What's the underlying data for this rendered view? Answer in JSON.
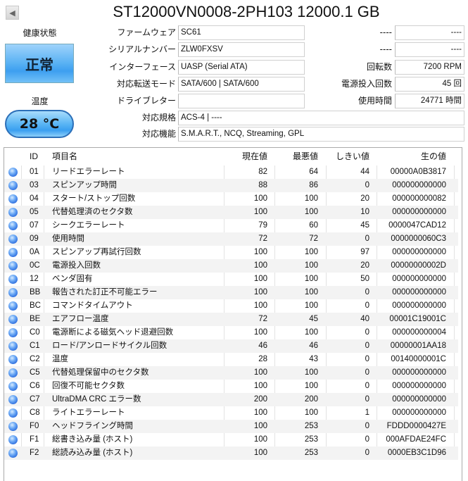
{
  "header": {
    "title": "ST12000VN0008-2PH103 12000.1 GB",
    "back_icon": "triangle-left-icon"
  },
  "health": {
    "label": "健康状態",
    "status": "正常",
    "color": "#4aa8f2"
  },
  "temperature": {
    "label": "温度",
    "value": "28 °C"
  },
  "info_left": [
    {
      "label": "ファームウェア",
      "value": "SC61"
    },
    {
      "label": "シリアルナンバー",
      "value": "ZLW0FXSV"
    },
    {
      "label": "インターフェース",
      "value": "UASP (Serial ATA)"
    },
    {
      "label": "対応転送モード",
      "value": "SATA/600 | SATA/600"
    },
    {
      "label": "ドライブレター",
      "value": ""
    }
  ],
  "info_right": [
    {
      "label": "----",
      "value": "----"
    },
    {
      "label": "----",
      "value": "----"
    },
    {
      "label": "回転数",
      "value": "7200 RPM"
    },
    {
      "label": "電源投入回数",
      "value": "45 回"
    },
    {
      "label": "使用時間",
      "value": "24771 時間"
    }
  ],
  "info_wide": [
    {
      "label": "対応規格",
      "value": "ACS-4 | ----"
    },
    {
      "label": "対応機能",
      "value": "S.M.A.R.T., NCQ, Streaming, GPL"
    }
  ],
  "smart": {
    "columns": [
      "ID",
      "項目名",
      "現在値",
      "最悪値",
      "しきい値",
      "生の値"
    ],
    "rows": [
      [
        "01",
        "リードエラーレート",
        "82",
        "64",
        "44",
        "00000A0B3817"
      ],
      [
        "03",
        "スピンアップ時間",
        "88",
        "86",
        "0",
        "000000000000"
      ],
      [
        "04",
        "スタート/ストップ回数",
        "100",
        "100",
        "20",
        "000000000082"
      ],
      [
        "05",
        "代替処理済のセクタ数",
        "100",
        "100",
        "10",
        "000000000000"
      ],
      [
        "07",
        "シークエラーレート",
        "79",
        "60",
        "45",
        "0000047CAD12"
      ],
      [
        "09",
        "使用時間",
        "72",
        "72",
        "0",
        "0000000060C3"
      ],
      [
        "0A",
        "スピンアップ再試行回数",
        "100",
        "100",
        "97",
        "000000000000"
      ],
      [
        "0C",
        "電源投入回数",
        "100",
        "100",
        "20",
        "00000000002D"
      ],
      [
        "12",
        "ベンダ固有",
        "100",
        "100",
        "50",
        "000000000000"
      ],
      [
        "BB",
        "報告された訂正不可能エラー",
        "100",
        "100",
        "0",
        "000000000000"
      ],
      [
        "BC",
        "コマンドタイムアウト",
        "100",
        "100",
        "0",
        "000000000000"
      ],
      [
        "BE",
        "エアフロー温度",
        "72",
        "45",
        "40",
        "00001C19001C"
      ],
      [
        "C0",
        "電源断による磁気ヘッド退避回数",
        "100",
        "100",
        "0",
        "000000000004"
      ],
      [
        "C1",
        "ロード/アンロードサイクル回数",
        "46",
        "46",
        "0",
        "00000001AA18"
      ],
      [
        "C2",
        "温度",
        "28",
        "43",
        "0",
        "00140000001C"
      ],
      [
        "C5",
        "代替処理保留中のセクタ数",
        "100",
        "100",
        "0",
        "000000000000"
      ],
      [
        "C6",
        "回復不可能セクタ数",
        "100",
        "100",
        "0",
        "000000000000"
      ],
      [
        "C7",
        "UltraDMA CRC エラー数",
        "200",
        "200",
        "0",
        "000000000000"
      ],
      [
        "C8",
        "ライトエラーレート",
        "100",
        "100",
        "1",
        "000000000000"
      ],
      [
        "F0",
        "ヘッドフライング時間",
        "100",
        "253",
        "0",
        "FDDD0000427E"
      ],
      [
        "F1",
        "総書き込み量 (ホスト)",
        "100",
        "253",
        "0",
        "000AFDAE24FC"
      ],
      [
        "F2",
        "総読み込み量 (ホスト)",
        "100",
        "253",
        "0",
        "0000EB3C1D96"
      ]
    ],
    "status_icon": "status-good-blue-dot-icon"
  }
}
